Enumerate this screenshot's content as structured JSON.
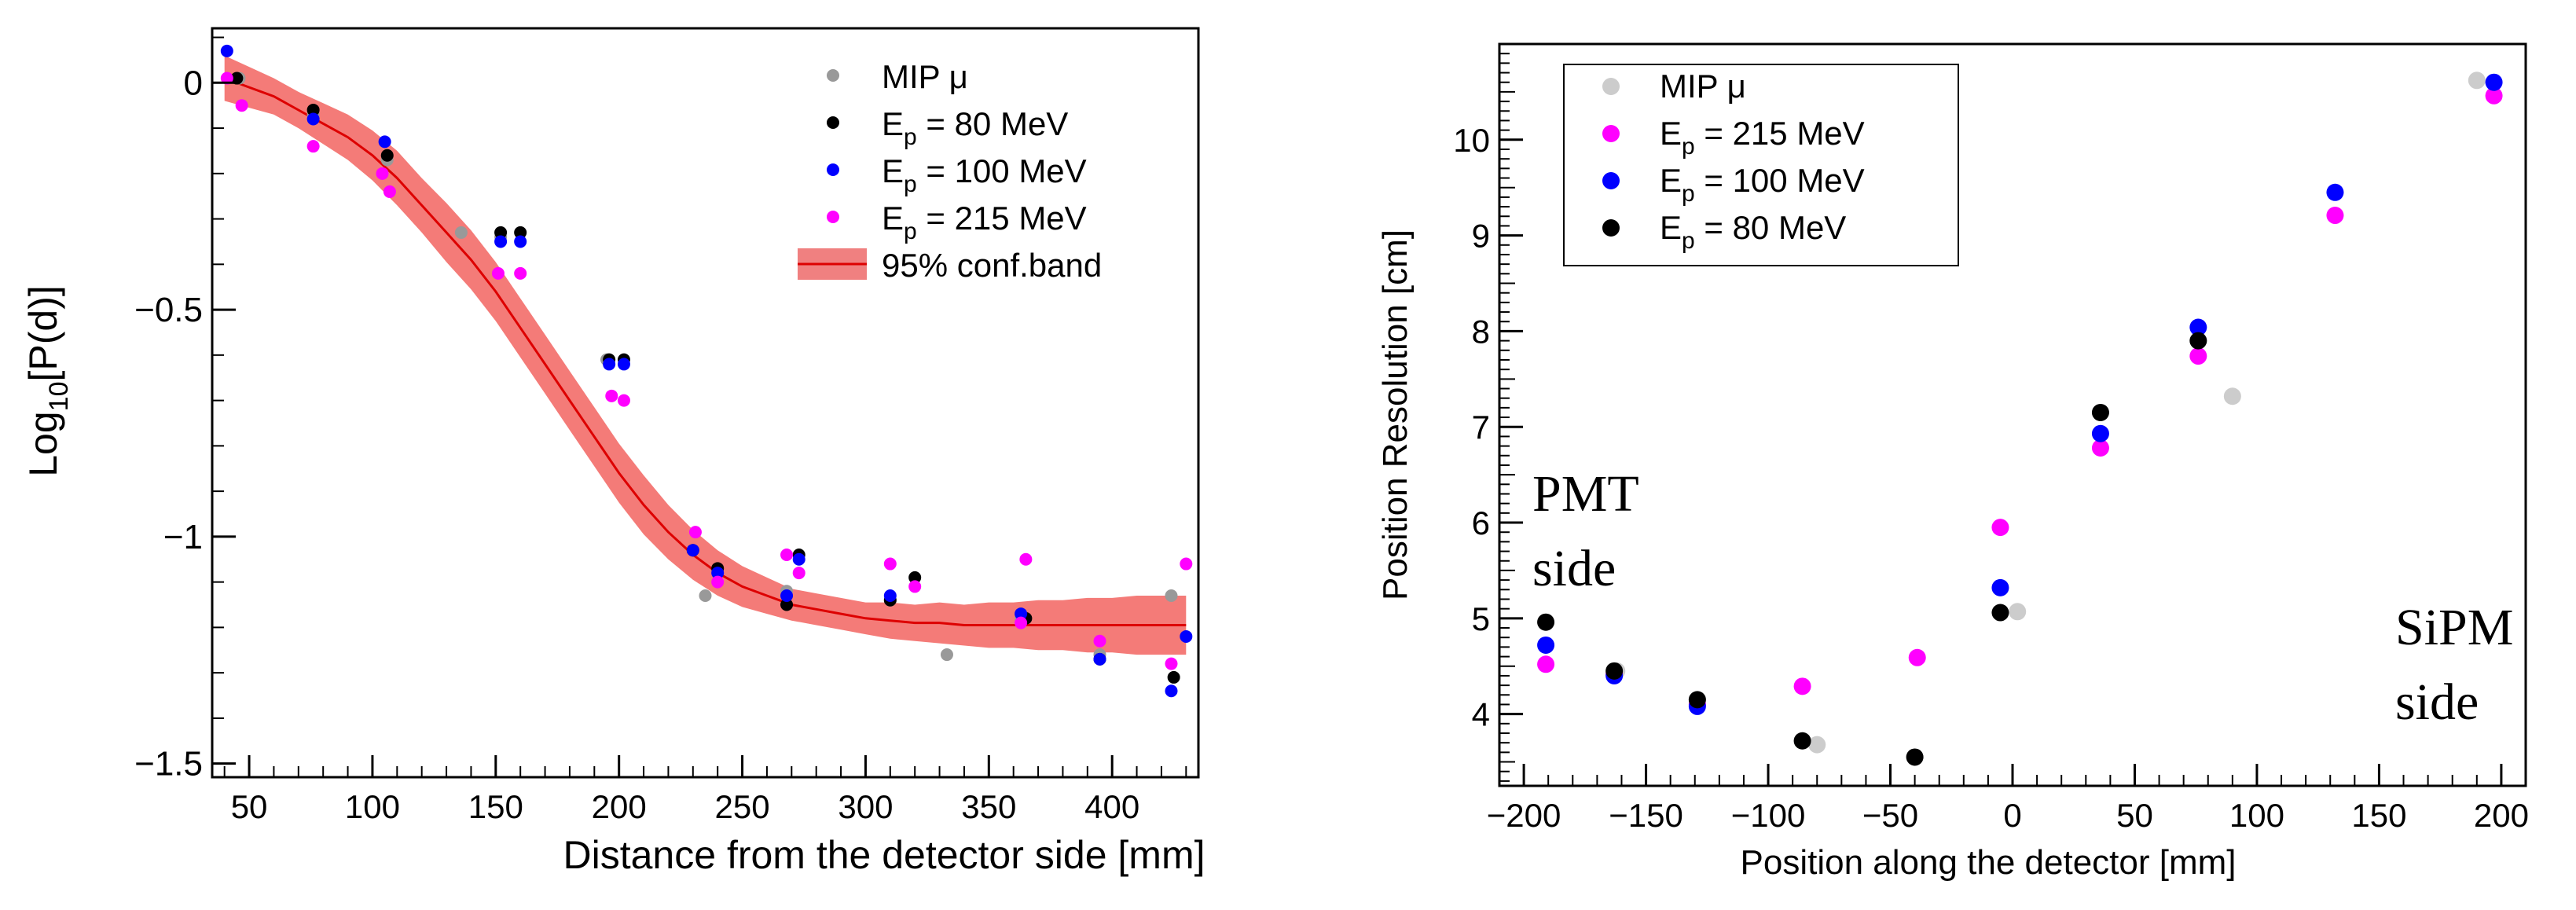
{
  "chart_data": [
    {
      "type": "scatter",
      "title": "",
      "xlabel": "Distance from the detector side [mm]",
      "ylabel": "Log10[P(d)]",
      "ylabel_main": "Log",
      "ylabel_sub": "10",
      "ylabel_rest": "[P(d)]",
      "xlim": [
        35,
        435
      ],
      "ylim": [
        -1.53,
        0.12
      ],
      "xticks": [
        50,
        100,
        150,
        200,
        250,
        300,
        350,
        400
      ],
      "xtick_labels": [
        "50",
        "100",
        "150",
        "200",
        "250",
        "300",
        "350",
        "400"
      ],
      "yticks": [
        0,
        -0.5,
        -1,
        -1.5
      ],
      "ytick_labels": [
        "0",
        "−0.5",
        "−1",
        "−1.5"
      ],
      "legend_position": "top-right",
      "legend": [
        {
          "main": "MIP μ",
          "sub": "",
          "rest": "",
          "color": "#999999"
        },
        {
          "main": "E",
          "sub": "p",
          "rest": " = 80 MeV",
          "color": "#000000"
        },
        {
          "main": "E",
          "sub": "p",
          "rest": " = 100 MeV",
          "color": "#0000ff"
        },
        {
          "main": "E",
          "sub": "p",
          "rest": " = 215 MeV",
          "color": "#ff00ff"
        },
        {
          "main": "95% conf.band",
          "sub": "",
          "rest": "",
          "color": "#f08080"
        }
      ],
      "fit": {
        "name": "fit",
        "color": "#dd0000",
        "band_color": "#f47b78",
        "x": [
          40,
          50,
          60,
          70,
          80,
          90,
          100,
          110,
          120,
          130,
          140,
          150,
          160,
          170,
          180,
          190,
          200,
          210,
          220,
          230,
          240,
          250,
          260,
          270,
          280,
          290,
          300,
          310,
          320,
          330,
          340,
          350,
          360,
          370,
          380,
          390,
          400,
          410,
          420,
          430
        ],
        "y": [
          0.01,
          -0.01,
          -0.03,
          -0.06,
          -0.09,
          -0.12,
          -0.16,
          -0.21,
          -0.27,
          -0.33,
          -0.39,
          -0.46,
          -0.54,
          -0.62,
          -0.7,
          -0.78,
          -0.86,
          -0.93,
          -0.99,
          -1.04,
          -1.08,
          -1.11,
          -1.13,
          -1.15,
          -1.16,
          -1.17,
          -1.18,
          -1.185,
          -1.19,
          -1.19,
          -1.195,
          -1.195,
          -1.195,
          -1.195,
          -1.195,
          -1.195,
          -1.195,
          -1.195,
          -1.195,
          -1.195
        ],
        "band_halfwidth": [
          0.05,
          0.045,
          0.04,
          0.04,
          0.045,
          0.05,
          0.055,
          0.06,
          0.06,
          0.065,
          0.065,
          0.065,
          0.065,
          0.065,
          0.065,
          0.065,
          0.065,
          0.065,
          0.06,
          0.055,
          0.05,
          0.045,
          0.04,
          0.035,
          0.035,
          0.035,
          0.035,
          0.04,
          0.04,
          0.045,
          0.045,
          0.05,
          0.05,
          0.055,
          0.055,
          0.06,
          0.06,
          0.065,
          0.065,
          0.065
        ]
      },
      "series": [
        {
          "name": "MIP μ",
          "color": "#999999",
          "x": [
            46,
            76,
            106,
            136,
            152,
            195,
            235,
            268,
            310,
            333,
            363,
            395,
            424
          ],
          "y": [
            0.01,
            -0.07,
            -0.17,
            -0.33,
            -0.34,
            -0.61,
            -1.13,
            -1.12,
            -1.14,
            -1.26,
            -1.18,
            -1.26,
            -1.13
          ]
        },
        {
          "name": "E_p = 80 MeV",
          "color": "#000000",
          "x": [
            45,
            76,
            106,
            152,
            160,
            196,
            202,
            230,
            240,
            268,
            273,
            310,
            320,
            365,
            395,
            425
          ],
          "y": [
            0.01,
            -0.06,
            -0.16,
            -0.33,
            -0.33,
            -0.61,
            -0.61,
            -1.03,
            -1.07,
            -1.15,
            -1.04,
            -1.14,
            -1.09,
            -1.18,
            -1.27,
            -1.31
          ]
        },
        {
          "name": "E_p = 100 MeV",
          "color": "#0000ff",
          "x": [
            41,
            76,
            105,
            152,
            160,
            196,
            202,
            230,
            240,
            268,
            273,
            310,
            363,
            395,
            424,
            430
          ],
          "y": [
            0.07,
            -0.08,
            -0.13,
            -0.35,
            -0.35,
            -0.62,
            -0.62,
            -1.03,
            -1.08,
            -1.13,
            -1.05,
            -1.13,
            -1.17,
            -1.27,
            -1.34,
            -1.22
          ]
        },
        {
          "name": "E_p = 215 MeV",
          "color": "#ff00ff",
          "x": [
            41,
            47,
            76,
            104,
            107,
            151,
            160,
            197,
            202,
            231,
            240,
            268,
            273,
            310,
            320,
            363,
            365,
            395,
            424,
            430
          ],
          "y": [
            0.01,
            -0.05,
            -0.14,
            -0.2,
            -0.24,
            -0.42,
            -0.42,
            -0.69,
            -0.7,
            -0.99,
            -1.1,
            -1.04,
            -1.08,
            -1.06,
            -1.11,
            -1.19,
            -1.05,
            -1.23,
            -1.28,
            -1.06
          ]
        }
      ]
    },
    {
      "type": "scatter",
      "title": "",
      "xlabel": "Position along the detector [mm]",
      "ylabel": "Position Resolution [cm]",
      "xlim": [
        -210,
        210
      ],
      "ylim": [
        3.25,
        11.0
      ],
      "xticks": [
        -200,
        -150,
        -100,
        -50,
        0,
        50,
        100,
        150,
        200
      ],
      "xtick_labels": [
        "−200",
        "−150",
        "−100",
        "−50",
        "0",
        "50",
        "100",
        "150",
        "200"
      ],
      "yticks": [
        4,
        5,
        6,
        7,
        8,
        9,
        10
      ],
      "ytick_labels": [
        "4",
        "5",
        "6",
        "7",
        "8",
        "9",
        "10"
      ],
      "legend_position": "top-left",
      "legend": [
        {
          "main": "MIP μ",
          "sub": "",
          "rest": "",
          "color": "#cccccc"
        },
        {
          "main": "E",
          "sub": "p",
          "rest": " = 215 MeV",
          "color": "#ff00ff"
        },
        {
          "main": "E",
          "sub": "p",
          "rest": " = 100 MeV",
          "color": "#0000ff"
        },
        {
          "main": "E",
          "sub": "p",
          "rest": " = 80 MeV",
          "color": "#000000"
        }
      ],
      "annotations": {
        "pmt_line1": "PMT",
        "pmt_line2": "side",
        "sipm_line1": "SiPM",
        "sipm_line2": "side"
      },
      "series": [
        {
          "name": "MIP μ",
          "color": "#cccccc",
          "x": [
            -162,
            -129,
            -80,
            2,
            36,
            76,
            90,
            190
          ],
          "y": [
            4.45,
            4.15,
            3.68,
            5.07,
            7.15,
            7.9,
            7.32,
            10.62
          ]
        },
        {
          "name": "E_p = 215 MeV",
          "color": "#ff00ff",
          "x": [
            -191,
            -163,
            -129,
            -86,
            -39,
            -5,
            36,
            76,
            132,
            197
          ],
          "y": [
            4.52,
            4.42,
            4.1,
            4.29,
            4.59,
            5.95,
            6.78,
            7.74,
            9.21,
            10.46
          ]
        },
        {
          "name": "E_p = 100 MeV",
          "color": "#0000ff",
          "x": [
            -191,
            -163,
            -129,
            -5,
            36,
            76,
            132,
            197
          ],
          "y": [
            4.72,
            4.4,
            4.08,
            5.32,
            6.93,
            8.04,
            9.45,
            10.6
          ]
        },
        {
          "name": "E_p = 80 MeV",
          "color": "#000000",
          "x": [
            -191,
            -163,
            -129,
            -86,
            -40,
            -5,
            36,
            76
          ],
          "y": [
            4.96,
            4.45,
            4.15,
            3.72,
            3.55,
            5.06,
            7.15,
            7.9
          ]
        }
      ]
    }
  ]
}
